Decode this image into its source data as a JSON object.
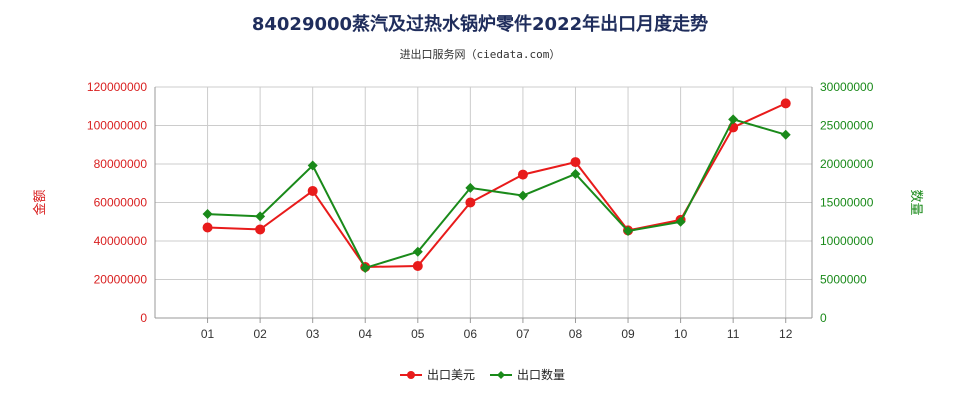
{
  "chart_data": {
    "type": "line",
    "title": "84029000蒸汽及过热水锅炉零件2022年出口月度走势",
    "subtitle": "进出口服务网（ciedata.com）",
    "categories": [
      "01",
      "02",
      "03",
      "04",
      "05",
      "06",
      "07",
      "08",
      "09",
      "10",
      "11",
      "12"
    ],
    "y_left": {
      "label": "金额",
      "range": [
        0,
        120000000
      ],
      "ticks": [
        "0",
        "20000000",
        "40000000",
        "60000000",
        "80000000",
        "100000000",
        "120000000"
      ],
      "color": "#e81b1b"
    },
    "y_right": {
      "label": "数量",
      "range": [
        0,
        30000000
      ],
      "ticks": [
        "0",
        "5000000",
        "10000000",
        "15000000",
        "20000000",
        "25000000",
        "30000000"
      ],
      "color": "#1a8a1a"
    },
    "series": [
      {
        "name": "出口美元",
        "axis": "left",
        "color": "#e81b1b",
        "values": [
          47000000,
          46000000,
          66000000,
          26500000,
          27000000,
          60000000,
          74500000,
          81000000,
          45500000,
          51000000,
          99000000,
          111500000
        ]
      },
      {
        "name": "出口数量",
        "axis": "right",
        "color": "#1a8a1a",
        "values": [
          13500000,
          13200000,
          19800000,
          6500000,
          8600000,
          16900000,
          15900000,
          18700000,
          11300000,
          12500000,
          25800000,
          23800000
        ]
      }
    ],
    "grid": true,
    "legend_position": "bottom-center"
  }
}
